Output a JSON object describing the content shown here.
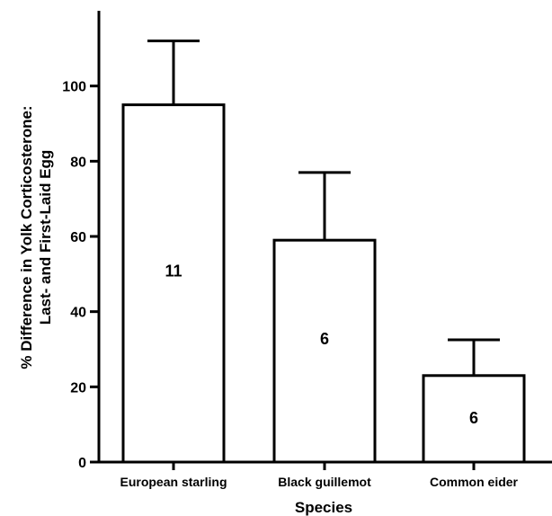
{
  "chart_data": {
    "type": "bar",
    "title": "",
    "categories": [
      "European starling",
      "Black guillemot",
      "Common eider"
    ],
    "values": [
      95,
      59,
      23
    ],
    "error_upper": [
      112,
      77,
      32.5
    ],
    "n_labels": [
      "11",
      "6",
      "6"
    ],
    "n_label_y": [
      51,
      33,
      12
    ],
    "xlabel": "Species",
    "ylabel_line1": "% Difference in Yolk Corticosterone:",
    "ylabel_line2": "Last- and First-Laid Egg",
    "ylim": [
      0,
      120
    ],
    "yticks": [
      0,
      20,
      40,
      60,
      80,
      100
    ],
    "grid": false,
    "legend": "none",
    "bar_fill": "#ffffff",
    "stroke": "#000000"
  }
}
